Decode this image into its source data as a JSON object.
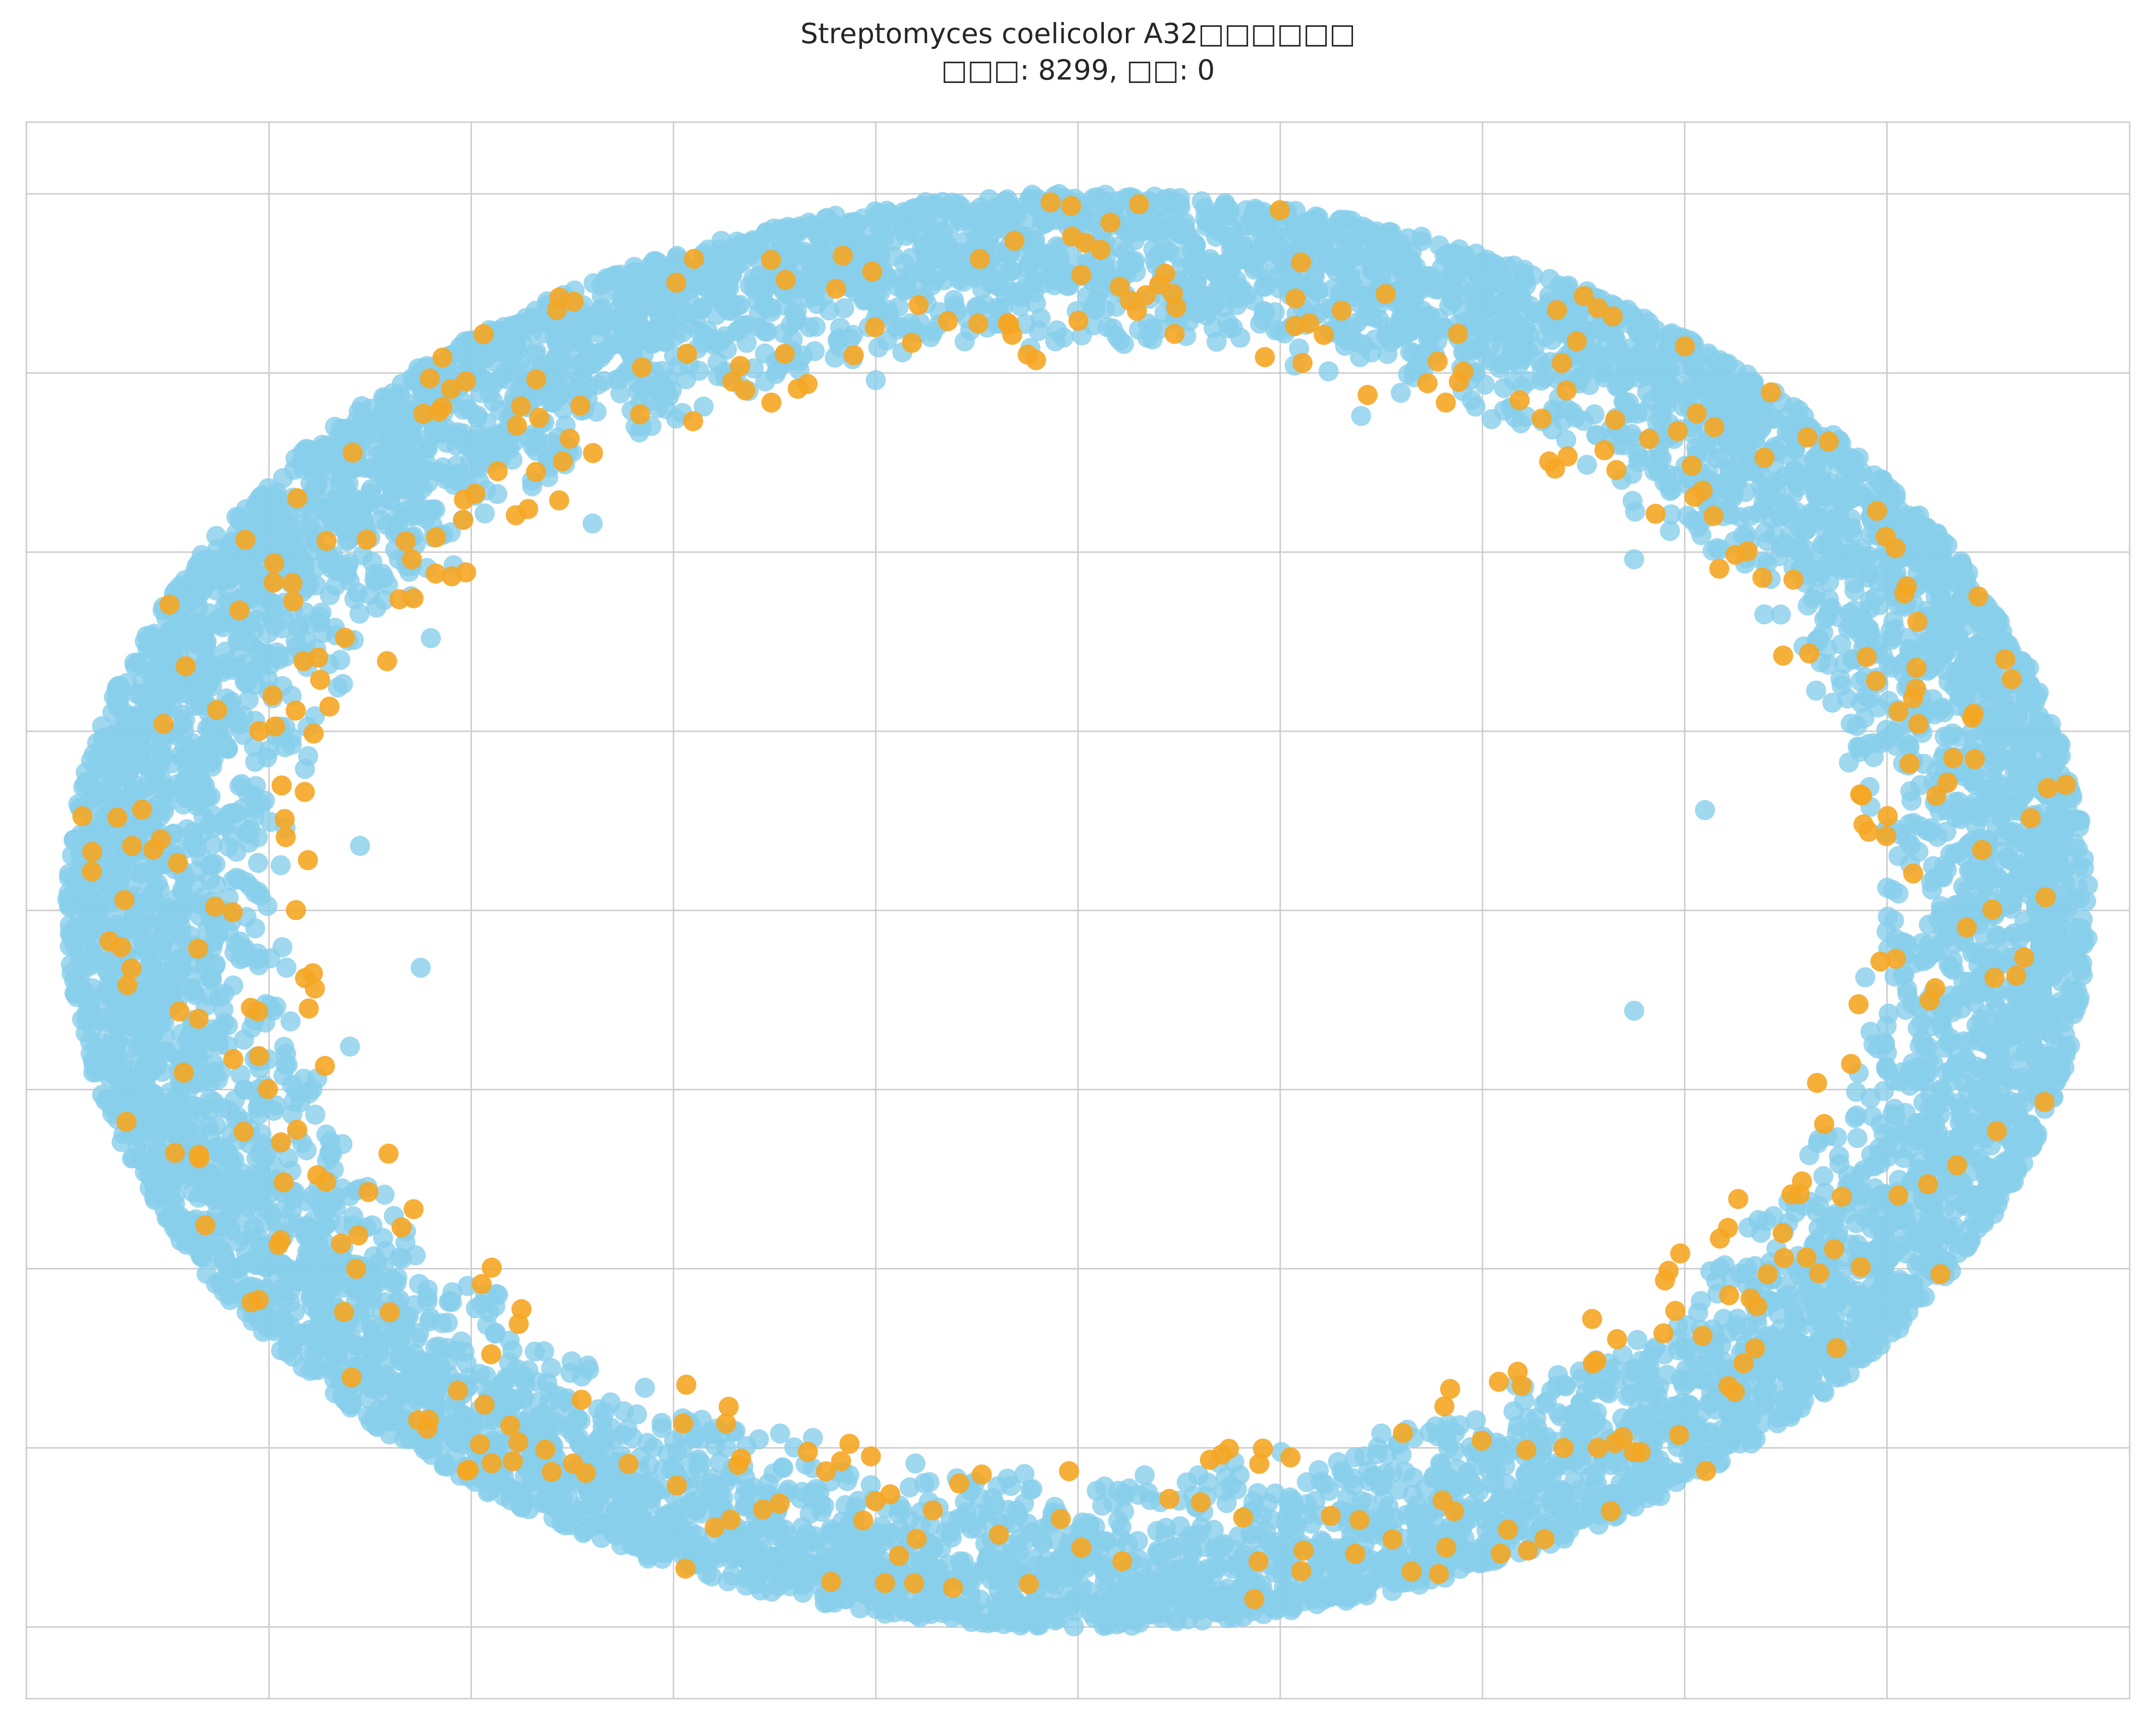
{
  "chart_data": {
    "type": "scatter",
    "title": "Streptomyces coelicolor A32□□□□□□",
    "subtitle": "□□□: 8299, □□: 0",
    "xlabel": "",
    "ylabel": "",
    "xlim": [
      -1.04,
      1.04
    ],
    "ylim": [
      -1.1,
      1.1
    ],
    "xticks": [
      -0.8,
      -0.6,
      -0.4,
      -0.2,
      0.0,
      0.2,
      0.4,
      0.6,
      0.8
    ],
    "yticks": [
      -1.0,
      -0.75,
      -0.5,
      -0.25,
      0.0,
      0.25,
      0.5,
      0.75,
      1.0
    ],
    "grid": true,
    "tick_labels_visible": false,
    "layout": "circular",
    "node_count": 8299,
    "edge_count": 0,
    "series": [
      {
        "color": "#87ceeb",
        "count": 7889,
        "ring_inner_radius": 0.78,
        "ring_outer_radius": 1.0,
        "outliers": [
          [
            -0.2,
            0.74
          ],
          [
            0.28,
            0.69
          ],
          [
            -0.48,
            0.54
          ],
          [
            0.55,
            0.49
          ],
          [
            -0.64,
            0.38
          ],
          [
            -0.71,
            0.09
          ],
          [
            0.62,
            0.14
          ],
          [
            -0.65,
            -0.08
          ],
          [
            -0.72,
            -0.19
          ],
          [
            0.55,
            -0.14
          ],
          [
            -0.23,
            -0.83
          ],
          [
            0.04,
            -0.81
          ],
          [
            0.3,
            -0.73
          ],
          [
            -0.38,
            -0.77
          ],
          [
            -0.59,
            -0.55
          ]
        ]
      },
      {
        "color": "#f5a623",
        "count": 410,
        "ring_inner_radius": 0.76,
        "ring_outer_radius": 1.0
      }
    ]
  }
}
